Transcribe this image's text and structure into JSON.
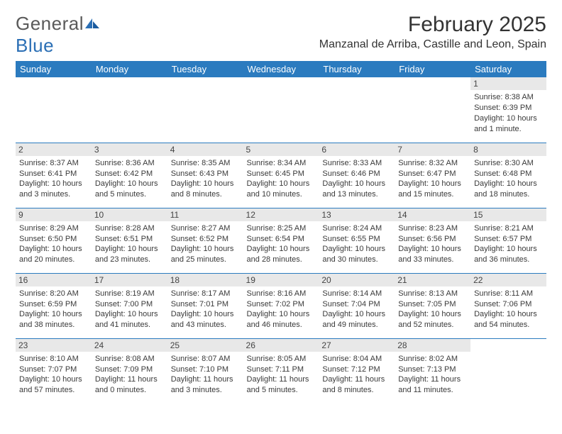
{
  "brand": {
    "name_a": "General",
    "name_b": "Blue"
  },
  "title": "February 2025",
  "location": "Manzanal de Arriba, Castille and Leon, Spain",
  "colors": {
    "header_bg": "#2b7bbf",
    "header_text": "#ffffff",
    "daynum_bg": "#e8e8e8",
    "border": "#2b7bbf",
    "brand_gray": "#5a5a5a",
    "brand_blue": "#2b6fb5",
    "text": "#3a3a3a",
    "page_bg": "#ffffff"
  },
  "typography": {
    "title_fontsize": 30,
    "location_fontsize": 16,
    "dayhead_fontsize": 13,
    "cell_fontsize": 11,
    "daynum_fontsize": 12
  },
  "day_names": [
    "Sunday",
    "Monday",
    "Tuesday",
    "Wednesday",
    "Thursday",
    "Friday",
    "Saturday"
  ],
  "weeks": [
    [
      {
        "n": "",
        "sr": "",
        "ss": "",
        "dl": ""
      },
      {
        "n": "",
        "sr": "",
        "ss": "",
        "dl": ""
      },
      {
        "n": "",
        "sr": "",
        "ss": "",
        "dl": ""
      },
      {
        "n": "",
        "sr": "",
        "ss": "",
        "dl": ""
      },
      {
        "n": "",
        "sr": "",
        "ss": "",
        "dl": ""
      },
      {
        "n": "",
        "sr": "",
        "ss": "",
        "dl": ""
      },
      {
        "n": "1",
        "sr": "Sunrise: 8:38 AM",
        "ss": "Sunset: 6:39 PM",
        "dl": "Daylight: 10 hours and 1 minute."
      }
    ],
    [
      {
        "n": "2",
        "sr": "Sunrise: 8:37 AM",
        "ss": "Sunset: 6:41 PM",
        "dl": "Daylight: 10 hours and 3 minutes."
      },
      {
        "n": "3",
        "sr": "Sunrise: 8:36 AM",
        "ss": "Sunset: 6:42 PM",
        "dl": "Daylight: 10 hours and 5 minutes."
      },
      {
        "n": "4",
        "sr": "Sunrise: 8:35 AM",
        "ss": "Sunset: 6:43 PM",
        "dl": "Daylight: 10 hours and 8 minutes."
      },
      {
        "n": "5",
        "sr": "Sunrise: 8:34 AM",
        "ss": "Sunset: 6:45 PM",
        "dl": "Daylight: 10 hours and 10 minutes."
      },
      {
        "n": "6",
        "sr": "Sunrise: 8:33 AM",
        "ss": "Sunset: 6:46 PM",
        "dl": "Daylight: 10 hours and 13 minutes."
      },
      {
        "n": "7",
        "sr": "Sunrise: 8:32 AM",
        "ss": "Sunset: 6:47 PM",
        "dl": "Daylight: 10 hours and 15 minutes."
      },
      {
        "n": "8",
        "sr": "Sunrise: 8:30 AM",
        "ss": "Sunset: 6:48 PM",
        "dl": "Daylight: 10 hours and 18 minutes."
      }
    ],
    [
      {
        "n": "9",
        "sr": "Sunrise: 8:29 AM",
        "ss": "Sunset: 6:50 PM",
        "dl": "Daylight: 10 hours and 20 minutes."
      },
      {
        "n": "10",
        "sr": "Sunrise: 8:28 AM",
        "ss": "Sunset: 6:51 PM",
        "dl": "Daylight: 10 hours and 23 minutes."
      },
      {
        "n": "11",
        "sr": "Sunrise: 8:27 AM",
        "ss": "Sunset: 6:52 PM",
        "dl": "Daylight: 10 hours and 25 minutes."
      },
      {
        "n": "12",
        "sr": "Sunrise: 8:25 AM",
        "ss": "Sunset: 6:54 PM",
        "dl": "Daylight: 10 hours and 28 minutes."
      },
      {
        "n": "13",
        "sr": "Sunrise: 8:24 AM",
        "ss": "Sunset: 6:55 PM",
        "dl": "Daylight: 10 hours and 30 minutes."
      },
      {
        "n": "14",
        "sr": "Sunrise: 8:23 AM",
        "ss": "Sunset: 6:56 PM",
        "dl": "Daylight: 10 hours and 33 minutes."
      },
      {
        "n": "15",
        "sr": "Sunrise: 8:21 AM",
        "ss": "Sunset: 6:57 PM",
        "dl": "Daylight: 10 hours and 36 minutes."
      }
    ],
    [
      {
        "n": "16",
        "sr": "Sunrise: 8:20 AM",
        "ss": "Sunset: 6:59 PM",
        "dl": "Daylight: 10 hours and 38 minutes."
      },
      {
        "n": "17",
        "sr": "Sunrise: 8:19 AM",
        "ss": "Sunset: 7:00 PM",
        "dl": "Daylight: 10 hours and 41 minutes."
      },
      {
        "n": "18",
        "sr": "Sunrise: 8:17 AM",
        "ss": "Sunset: 7:01 PM",
        "dl": "Daylight: 10 hours and 43 minutes."
      },
      {
        "n": "19",
        "sr": "Sunrise: 8:16 AM",
        "ss": "Sunset: 7:02 PM",
        "dl": "Daylight: 10 hours and 46 minutes."
      },
      {
        "n": "20",
        "sr": "Sunrise: 8:14 AM",
        "ss": "Sunset: 7:04 PM",
        "dl": "Daylight: 10 hours and 49 minutes."
      },
      {
        "n": "21",
        "sr": "Sunrise: 8:13 AM",
        "ss": "Sunset: 7:05 PM",
        "dl": "Daylight: 10 hours and 52 minutes."
      },
      {
        "n": "22",
        "sr": "Sunrise: 8:11 AM",
        "ss": "Sunset: 7:06 PM",
        "dl": "Daylight: 10 hours and 54 minutes."
      }
    ],
    [
      {
        "n": "23",
        "sr": "Sunrise: 8:10 AM",
        "ss": "Sunset: 7:07 PM",
        "dl": "Daylight: 10 hours and 57 minutes."
      },
      {
        "n": "24",
        "sr": "Sunrise: 8:08 AM",
        "ss": "Sunset: 7:09 PM",
        "dl": "Daylight: 11 hours and 0 minutes."
      },
      {
        "n": "25",
        "sr": "Sunrise: 8:07 AM",
        "ss": "Sunset: 7:10 PM",
        "dl": "Daylight: 11 hours and 3 minutes."
      },
      {
        "n": "26",
        "sr": "Sunrise: 8:05 AM",
        "ss": "Sunset: 7:11 PM",
        "dl": "Daylight: 11 hours and 5 minutes."
      },
      {
        "n": "27",
        "sr": "Sunrise: 8:04 AM",
        "ss": "Sunset: 7:12 PM",
        "dl": "Daylight: 11 hours and 8 minutes."
      },
      {
        "n": "28",
        "sr": "Sunrise: 8:02 AM",
        "ss": "Sunset: 7:13 PM",
        "dl": "Daylight: 11 hours and 11 minutes."
      },
      {
        "n": "",
        "sr": "",
        "ss": "",
        "dl": ""
      }
    ]
  ]
}
